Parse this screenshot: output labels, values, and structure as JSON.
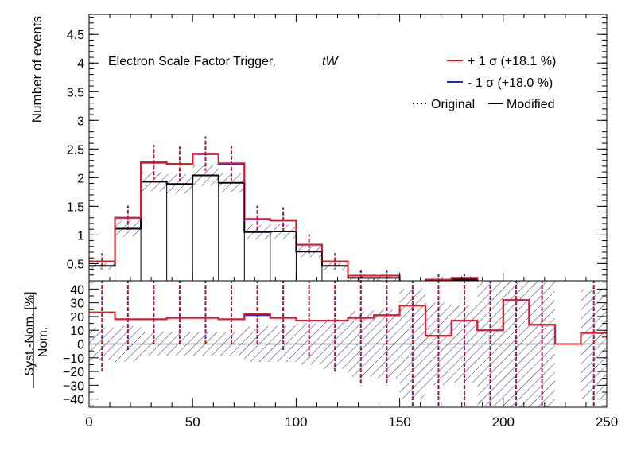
{
  "chart_data": [
    {
      "type": "histogram",
      "panel": "main",
      "ylabel": "Number of events",
      "xlim": [
        0,
        250
      ],
      "ylim": [
        0.2,
        4.85
      ],
      "yticks": [
        0.5,
        1,
        1.5,
        2,
        2.5,
        3,
        3.5,
        4,
        4.5
      ],
      "ytick_labels": [
        "0.5",
        "1",
        "1.5",
        "2",
        "2.5",
        "3",
        "3.5",
        "4",
        "4.5"
      ],
      "annotation_left": "Electron Scale Factor Trigger,",
      "annotation_sample": "tW",
      "legend_placement": "top-right",
      "legend": {
        "up": "+ 1 σ (+18.1 %)",
        "down": "- 1 σ (+18.0 %)",
        "original": "Original",
        "modified": "Modified"
      },
      "bin_edges": [
        0,
        12.5,
        25,
        37.5,
        50,
        62.5,
        75,
        87.5,
        100,
        112.5,
        125,
        137.5,
        150,
        162.5,
        175,
        187.5,
        200,
        212.5,
        225,
        237.5,
        250
      ],
      "series": [
        {
          "name": "Modified",
          "role": "nominal",
          "color": "#000000",
          "values": [
            0.46,
            1.11,
            1.93,
            1.89,
            2.04,
            1.91,
            1.05,
            1.06,
            0.71,
            0.46,
            0.25,
            0.25,
            0.1,
            0.21,
            0.22,
            0.06,
            0.05,
            0.07,
            0.0,
            0.11
          ]
        },
        {
          "name": "+ 1 σ (+18.1 %)",
          "role": "up",
          "color": "#e8191c",
          "values": [
            0.54,
            1.3,
            2.27,
            2.24,
            2.42,
            2.25,
            1.28,
            1.26,
            0.83,
            0.54,
            0.29,
            0.29,
            0.12,
            0.22,
            0.25,
            0.06,
            0.06,
            0.07,
            0.0,
            0.11
          ]
        },
        {
          "name": "- 1 σ (+18.0 %)",
          "role": "down",
          "color": "#1a27c8",
          "values": [
            0.54,
            1.3,
            2.26,
            2.23,
            2.41,
            2.24,
            1.27,
            1.25,
            0.83,
            0.54,
            0.29,
            0.29,
            0.12,
            0.22,
            0.25,
            0.06,
            0.06,
            0.07,
            0.0,
            0.11
          ]
        }
      ],
      "stat_error_band": [
        0.06,
        0.14,
        0.17,
        0.17,
        0.18,
        0.17,
        0.13,
        0.13,
        0.1,
        0.08,
        0.06,
        0.06,
        0.04,
        0.06,
        0.06,
        0.03,
        0.03,
        0.03,
        0.0,
        0.04
      ],
      "original_up_dotted": [
        0.68,
        1.51,
        2.57,
        2.54,
        2.72,
        2.55,
        1.51,
        1.48,
        1.01,
        0.68,
        0.38,
        0.38,
        0.17,
        0.31,
        0.32,
        0.1,
        0.1,
        0.11,
        0.0,
        0.16
      ],
      "original_down_dotted": [
        0.4,
        1.09,
        1.97,
        1.94,
        2.12,
        1.95,
        1.05,
        1.04,
        0.65,
        0.4,
        0.2,
        0.2,
        0.07,
        0.13,
        0.18,
        0.02,
        0.02,
        0.03,
        0.0,
        0.06
      ]
    },
    {
      "type": "histogram",
      "panel": "ratio",
      "ylabel_numerator": "Syst.-Nom.",
      "ylabel_denominator": "Nom.",
      "ylabel_unit": "[%]",
      "xlim": [
        0,
        250
      ],
      "ylim": [
        -46,
        46
      ],
      "yticks": [
        -40,
        -30,
        -20,
        -10,
        0,
        10,
        20,
        30,
        40
      ],
      "ytick_labels": [
        "−40",
        "−30",
        "−20",
        "−10",
        "0",
        "10",
        "20",
        "30",
        "40"
      ],
      "xticks": [
        0,
        50,
        100,
        150,
        200,
        250
      ],
      "xtick_labels": [
        "0",
        "50",
        "100",
        "150",
        "200",
        "250"
      ],
      "series": [
        {
          "name": "+ 1 σ (+18.1 %)",
          "role": "up",
          "color": "#e8191c",
          "values": [
            23,
            18,
            18,
            19,
            19,
            18,
            22,
            19,
            17,
            17,
            19,
            21,
            28,
            6,
            17,
            10,
            32,
            14,
            0,
            8
          ]
        },
        {
          "name": "- 1 σ (+18.0 %)",
          "role": "down",
          "color": "#1a27c8",
          "values": [
            23,
            18,
            18,
            19,
            19,
            18,
            21,
            19,
            17,
            17,
            19,
            21,
            28,
            6,
            17,
            10,
            32,
            14,
            0,
            8
          ]
        }
      ],
      "stat_error_band_pct": [
        12,
        13,
        9,
        9,
        9,
        9,
        13,
        13,
        15,
        18,
        24,
        25,
        40,
        30,
        28,
        45,
        46,
        46,
        46,
        40
      ],
      "original_up_dotted": [
        46,
        46,
        46,
        46,
        46,
        46,
        46,
        46,
        46,
        46,
        46,
        46,
        46,
        46,
        46,
        46,
        46,
        46,
        0,
        46
      ],
      "original_down_dotted": [
        -20,
        -5,
        0,
        0,
        0,
        0,
        0,
        -5,
        -10,
        -20,
        -30,
        -30,
        -46,
        -46,
        -46,
        -46,
        -46,
        -46,
        0,
        -46
      ]
    }
  ]
}
